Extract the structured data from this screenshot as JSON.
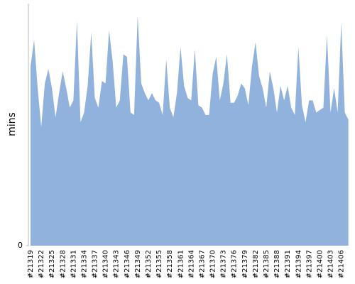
{
  "chart_data": {
    "type": "area",
    "y_label": "mins",
    "categories": [
      "#21319",
      null,
      null,
      "#21322",
      null,
      null,
      "#21325",
      null,
      null,
      "#21328",
      null,
      null,
      "#21331",
      null,
      null,
      "#21334",
      null,
      null,
      "#21337",
      null,
      null,
      "#21340",
      null,
      null,
      "#21343",
      null,
      null,
      "#21346",
      null,
      null,
      "#21349",
      null,
      null,
      "#21352",
      null,
      null,
      "#21355",
      null,
      null,
      "#21358",
      null,
      null,
      "#21361",
      null,
      null,
      "#21364",
      null,
      null,
      "#21367",
      null,
      null,
      "#21370",
      null,
      null,
      "#21373",
      null,
      null,
      "#21376",
      null,
      null,
      "#21379",
      null,
      null,
      "#21382",
      null,
      null,
      "#21385",
      null,
      null,
      "#21388",
      null,
      null,
      "#21391",
      null,
      null,
      "#21394",
      null,
      null,
      "#21397",
      null,
      null,
      "#21400",
      null,
      null,
      "#21403",
      null,
      null,
      "#21406",
      null,
      null
    ],
    "values": [
      74,
      85,
      65,
      49,
      67,
      73,
      65,
      53,
      63,
      72,
      65,
      57,
      60,
      93,
      51,
      55,
      66,
      88,
      61,
      57,
      68,
      67,
      89,
      76,
      57,
      60,
      79,
      78,
      55,
      54,
      95,
      67,
      63,
      60,
      63,
      60,
      59,
      54,
      77,
      57,
      53,
      63,
      82,
      66,
      61,
      60,
      81,
      58,
      57,
      54,
      54,
      71,
      78,
      60,
      67,
      79,
      59,
      59,
      62,
      67,
      65,
      58,
      74,
      84,
      70,
      65,
      57,
      72,
      65,
      55,
      66,
      60,
      66,
      57,
      54,
      82,
      58,
      51,
      60,
      60,
      55,
      56,
      57,
      87,
      55,
      65,
      55,
      92,
      55,
      52
    ],
    "color": "#91b2dc",
    "ylim": [
      0,
      100
    ],
    "yticks": [
      0
    ]
  }
}
